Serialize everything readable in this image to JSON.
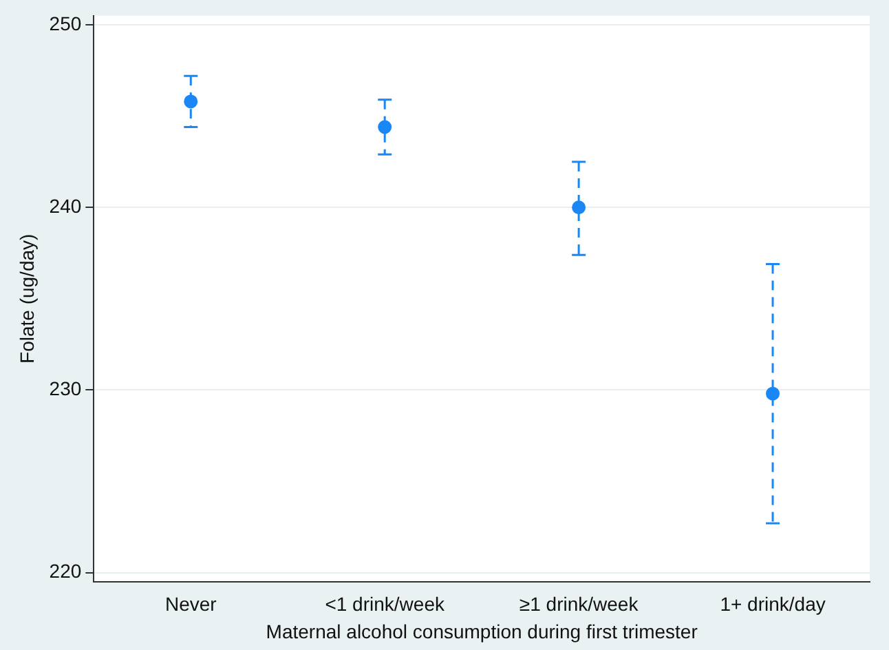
{
  "chart_data": {
    "type": "scatter",
    "xlabel": "Maternal alcohol consumption during first trimester",
    "ylabel": "Folate (ug/day)",
    "categories": [
      "Never",
      "<1 drink/week",
      "≥1 drink/week",
      "1+ drink/day"
    ],
    "series": [
      {
        "color": "#1a87f5",
        "values": [
          245.8,
          244.4,
          240.0,
          229.8
        ],
        "errors": [
          [
            244.4,
            247.2
          ],
          [
            242.9,
            245.9
          ],
          [
            237.4,
            242.5
          ],
          [
            222.7,
            236.9
          ]
        ]
      }
    ],
    "ylim": [
      219.5,
      250.5
    ],
    "yticks": [
      220,
      230,
      240,
      250
    ],
    "grid": "y",
    "legend": false,
    "marker": "circle"
  }
}
